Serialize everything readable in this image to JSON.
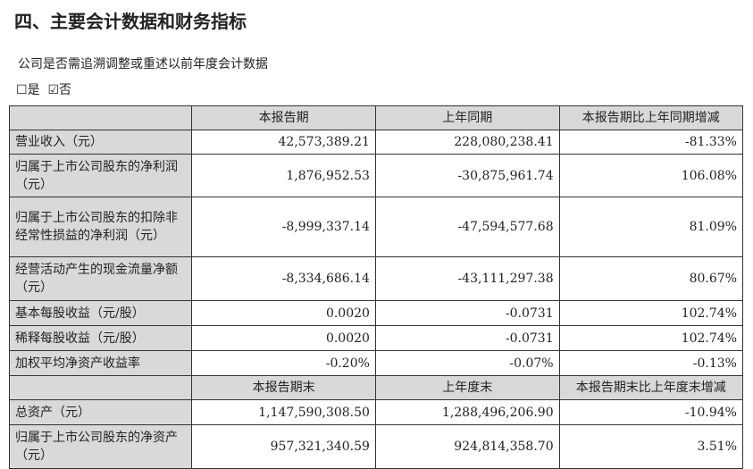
{
  "title": "四、主要会计数据和财务指标",
  "question": "公司是否需追溯调整或重述以前年度会计数据",
  "options": [
    {
      "label": "是",
      "checked": false
    },
    {
      "label": "否",
      "checked": true
    }
  ],
  "header1": [
    "",
    "本报告期",
    "上年同期",
    "本报告期比上年同期增减"
  ],
  "rows1": [
    [
      "营业收入（元）",
      "42,573,389.21",
      "228,080,238.41",
      "-81.33%"
    ],
    [
      "归属于上市公司股东的净利润（元）",
      "1,876,952.53",
      "-30,875,961.74",
      "106.08%"
    ],
    [
      "归属于上市公司股东的扣除非经常性损益的净利润（元）",
      "-8,999,337.14",
      "-47,594,577.68",
      "81.09%"
    ],
    [
      "经营活动产生的现金流量净额（元）",
      "-8,334,686.14",
      "-43,111,297.38",
      "80.67%"
    ],
    [
      "基本每股收益（元/股）",
      "0.0020",
      "-0.0731",
      "102.74%"
    ],
    [
      "稀释每股收益（元/股）",
      "0.0020",
      "-0.0731",
      "102.74%"
    ],
    [
      "加权平均净资产收益率",
      "-0.20%",
      "-0.07%",
      "-0.13%"
    ]
  ],
  "header2": [
    "",
    "本报告期末",
    "上年度末",
    "本报告期末比上年度末增减"
  ],
  "rows2": [
    [
      "总资产（元）",
      "1,147,590,308.50",
      "1,288,496,206.90",
      "-10.94%"
    ],
    [
      "归属于上市公司股东的净资产（元）",
      "957,321,340.59",
      "924,814,358.70",
      "3.51%"
    ]
  ]
}
